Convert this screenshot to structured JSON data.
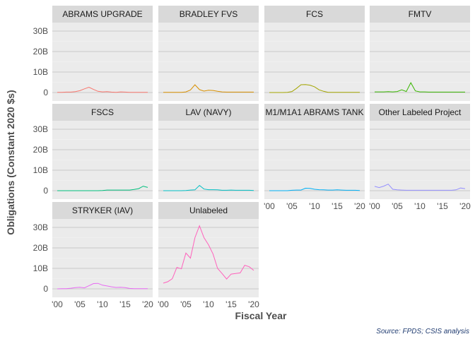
{
  "chart_data": {
    "type": "line",
    "facet_layout": "wrap-4-columns",
    "xlabel": "Fiscal Year",
    "ylabel": "Obligations (Constant 2020 $s)",
    "caption": "Source: FPDS; CSIS analysis",
    "xlim": [
      2000,
      2020
    ],
    "ylim": [
      0,
      30
    ],
    "x_ticks": [
      2000,
      2005,
      2010,
      2015,
      2020
    ],
    "x_tick_labels": [
      "'00",
      "'05",
      "'10",
      "'15",
      "'20"
    ],
    "y_ticks": [
      0,
      10,
      20,
      30
    ],
    "y_tick_labels": [
      "0",
      "10B",
      "20B",
      "30B"
    ],
    "y_units": "billions",
    "grid": true,
    "legend": "none",
    "panels": [
      {
        "label": "ABRAMS UPGRADE",
        "color": "#f8766d",
        "x": [
          2000,
          2001,
          2002,
          2003,
          2004,
          2005,
          2006,
          2007,
          2008,
          2009,
          2010,
          2011,
          2012,
          2013,
          2014,
          2015,
          2016,
          2017,
          2018,
          2019,
          2020
        ],
        "values": [
          0.1,
          0.1,
          0.2,
          0.2,
          0.4,
          0.9,
          1.8,
          2.6,
          1.5,
          0.6,
          0.3,
          0.4,
          0.2,
          0.1,
          0.3,
          0.2,
          0.1,
          0.1,
          0.1,
          0.1,
          0.1
        ]
      },
      {
        "label": "BRADLEY FVS",
        "color": "#d89000",
        "x": [
          2000,
          2001,
          2002,
          2003,
          2004,
          2005,
          2006,
          2007,
          2008,
          2009,
          2010,
          2011,
          2012,
          2013,
          2014,
          2015,
          2016,
          2017,
          2018,
          2019,
          2020
        ],
        "values": [
          0.1,
          0.1,
          0.1,
          0.1,
          0.1,
          0.3,
          1.2,
          3.8,
          1.4,
          0.7,
          1.1,
          1.0,
          0.6,
          0.3,
          0.2,
          0.2,
          0.2,
          0.2,
          0.2,
          0.2,
          0.2
        ]
      },
      {
        "label": "FCS",
        "color": "#a3a500",
        "x": [
          2000,
          2001,
          2002,
          2003,
          2004,
          2005,
          2006,
          2007,
          2008,
          2009,
          2010,
          2011,
          2012,
          2013,
          2014,
          2015,
          2016,
          2017,
          2018,
          2019,
          2020
        ],
        "values": [
          0,
          0,
          0,
          0,
          0.1,
          0.5,
          2.0,
          3.8,
          3.9,
          3.6,
          2.8,
          1.3,
          0.6,
          0.1,
          0.1,
          0.1,
          0.1,
          0.1,
          0.1,
          0.1,
          0.1
        ]
      },
      {
        "label": "FMTV",
        "color": "#39b600",
        "x": [
          2000,
          2001,
          2002,
          2003,
          2004,
          2005,
          2006,
          2007,
          2008,
          2009,
          2010,
          2011,
          2012,
          2013,
          2014,
          2015,
          2016,
          2017,
          2018,
          2019,
          2020
        ],
        "values": [
          0.3,
          0.3,
          0.3,
          0.4,
          0.3,
          0.5,
          1.3,
          0.5,
          4.8,
          0.8,
          0.3,
          0.3,
          0.2,
          0.2,
          0.2,
          0.2,
          0.2,
          0.2,
          0.2,
          0.2,
          0.2
        ]
      },
      {
        "label": "FSCS",
        "color": "#00bf7d",
        "x": [
          2000,
          2001,
          2002,
          2003,
          2004,
          2005,
          2006,
          2007,
          2008,
          2009,
          2010,
          2011,
          2012,
          2013,
          2014,
          2015,
          2016,
          2017,
          2018,
          2019,
          2020
        ],
        "values": [
          0,
          0,
          0,
          0,
          0,
          0,
          0,
          0,
          0,
          0,
          0.1,
          0.3,
          0.3,
          0.3,
          0.3,
          0.3,
          0.3,
          0.6,
          1.0,
          2.2,
          1.6
        ]
      },
      {
        "label": "LAV (NAVY)",
        "color": "#00bfc4",
        "x": [
          2000,
          2001,
          2002,
          2003,
          2004,
          2005,
          2006,
          2007,
          2008,
          2009,
          2010,
          2011,
          2012,
          2013,
          2014,
          2015,
          2016,
          2017,
          2018,
          2019,
          2020
        ],
        "values": [
          0,
          0,
          0,
          0,
          0,
          0.1,
          0.3,
          0.4,
          2.6,
          0.8,
          0.5,
          0.5,
          0.4,
          0.2,
          0.2,
          0.3,
          0.2,
          0.2,
          0.2,
          0.2,
          0.1
        ]
      },
      {
        "label": "M1/M1A1 ABRAMS TANK",
        "color": "#00b0f6",
        "x": [
          2000,
          2001,
          2002,
          2003,
          2004,
          2005,
          2006,
          2007,
          2008,
          2009,
          2010,
          2011,
          2012,
          2013,
          2014,
          2015,
          2016,
          2017,
          2018,
          2019,
          2020
        ],
        "values": [
          0,
          0,
          0,
          0,
          0,
          0.2,
          0.3,
          0.3,
          1.2,
          1.1,
          0.7,
          0.5,
          0.4,
          0.3,
          0.3,
          0.4,
          0.3,
          0.2,
          0.2,
          0.2,
          0.1
        ]
      },
      {
        "label": "Other Labeled Project",
        "color": "#9590ff",
        "x": [
          2000,
          2001,
          2002,
          2003,
          2004,
          2005,
          2006,
          2007,
          2008,
          2009,
          2010,
          2011,
          2012,
          2013,
          2014,
          2015,
          2016,
          2017,
          2018,
          2019,
          2020
        ],
        "values": [
          2.1,
          1.5,
          2.2,
          3.2,
          0.7,
          0.4,
          0.3,
          0.2,
          0.2,
          0.2,
          0.2,
          0.2,
          0.2,
          0.2,
          0.2,
          0.2,
          0.2,
          0.2,
          0.4,
          1.3,
          1.0
        ]
      },
      {
        "label": "STRYKER (IAV)",
        "color": "#e76bf3",
        "x": [
          2000,
          2001,
          2002,
          2003,
          2004,
          2005,
          2006,
          2007,
          2008,
          2009,
          2010,
          2011,
          2012,
          2013,
          2014,
          2015,
          2016,
          2017,
          2018,
          2019,
          2020
        ],
        "values": [
          0,
          0.1,
          0.1,
          0.3,
          0.6,
          0.8,
          0.5,
          1.5,
          2.6,
          2.7,
          1.8,
          1.4,
          1.0,
          0.7,
          0.8,
          0.6,
          0.2,
          0.1,
          0.1,
          0.1,
          0.1
        ]
      },
      {
        "label": "Unlabeled",
        "color": "#ff62bc",
        "x": [
          2000,
          2001,
          2002,
          2003,
          2004,
          2005,
          2006,
          2007,
          2008,
          2009,
          2010,
          2011,
          2012,
          2013,
          2014,
          2015,
          2016,
          2017,
          2018,
          2019,
          2020
        ],
        "values": [
          2.8,
          3.5,
          5.0,
          10.5,
          9.8,
          17.5,
          15.0,
          25.0,
          30.8,
          25.0,
          21.5,
          17.0,
          10.0,
          7.5,
          4.8,
          7.2,
          7.5,
          7.8,
          11.5,
          10.8,
          9.0
        ]
      }
    ]
  }
}
